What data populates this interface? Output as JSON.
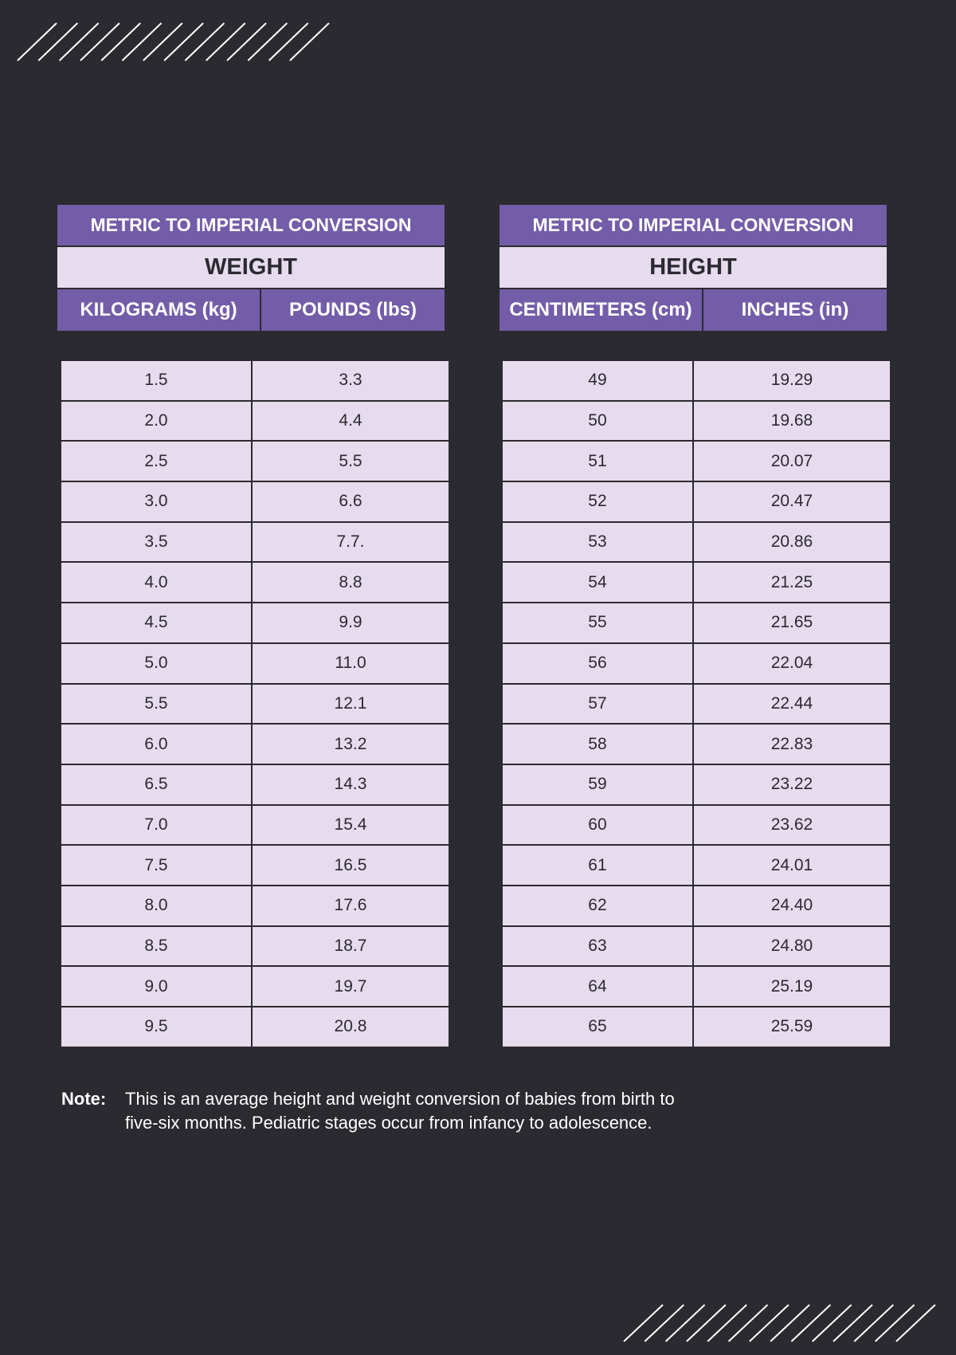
{
  "colors": {
    "background": "#2b2a30",
    "accent": "#735ca8",
    "cell": "#e7dbee"
  },
  "weight_table": {
    "title": "METRIC TO IMPERIAL CONVERSION",
    "subtitle": "WEIGHT",
    "columns": [
      "KILOGRAMS (kg)",
      "POUNDS (lbs)"
    ],
    "rows": [
      [
        "1.5",
        "3.3"
      ],
      [
        "2.0",
        "4.4"
      ],
      [
        "2.5",
        "5.5"
      ],
      [
        "3.0",
        "6.6"
      ],
      [
        "3.5",
        "7.7."
      ],
      [
        "4.0",
        "8.8"
      ],
      [
        "4.5",
        "9.9"
      ],
      [
        "5.0",
        "11.0"
      ],
      [
        "5.5",
        "12.1"
      ],
      [
        "6.0",
        "13.2"
      ],
      [
        "6.5",
        "14.3"
      ],
      [
        "7.0",
        "15.4"
      ],
      [
        "7.5",
        "16.5"
      ],
      [
        "8.0",
        "17.6"
      ],
      [
        "8.5",
        "18.7"
      ],
      [
        "9.0",
        "19.7"
      ],
      [
        "9.5",
        "20.8"
      ]
    ]
  },
  "height_table": {
    "title": "METRIC TO IMPERIAL CONVERSION",
    "subtitle": "HEIGHT",
    "columns": [
      "CENTIMETERS (cm)",
      "INCHES (in)"
    ],
    "rows": [
      [
        "49",
        "19.29"
      ],
      [
        "50",
        "19.68"
      ],
      [
        "51",
        "20.07"
      ],
      [
        "52",
        "20.47"
      ],
      [
        "53",
        "20.86"
      ],
      [
        "54",
        "21.25"
      ],
      [
        "55",
        "21.65"
      ],
      [
        "56",
        "22.04"
      ],
      [
        "57",
        "22.44"
      ],
      [
        "58",
        "22.83"
      ],
      [
        "59",
        "23.22"
      ],
      [
        "60",
        "23.62"
      ],
      [
        "61",
        "24.01"
      ],
      [
        "62",
        "24.40"
      ],
      [
        "63",
        "24.80"
      ],
      [
        "64",
        "25.19"
      ],
      [
        "65",
        "25.59"
      ]
    ]
  },
  "note": {
    "label": "Note:",
    "line1": "This is an average height and weight conversion of babies from birth to",
    "line2": "five-six months. Pediatric stages occur from infancy to adolescence."
  }
}
